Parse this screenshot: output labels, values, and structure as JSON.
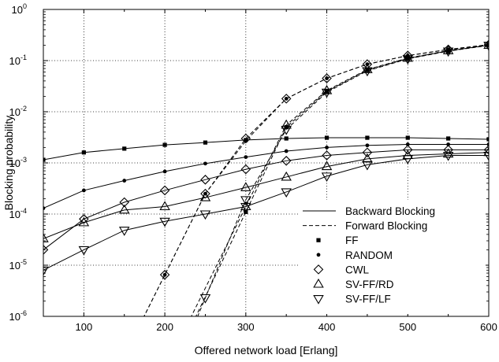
{
  "chart_data": {
    "type": "line",
    "xlabel": "Offered network load [Erlang]",
    "ylabel": "Blocking probability",
    "xlim": [
      50,
      600
    ],
    "ylim": [
      1e-06,
      1
    ],
    "yscale": "log",
    "xticks": [
      100,
      200,
      300,
      400,
      500,
      600
    ],
    "yticks": [
      {
        "base": "10",
        "exp": "0",
        "value": 1
      },
      {
        "base": "10",
        "exp": "-1",
        "value": 0.1
      },
      {
        "base": "10",
        "exp": "-2",
        "value": 0.01
      },
      {
        "base": "10",
        "exp": "-3",
        "value": 0.001
      },
      {
        "base": "10",
        "exp": "-4",
        "value": 0.0001
      },
      {
        "base": "10",
        "exp": "-5",
        "value": 1e-05
      },
      {
        "base": "10",
        "exp": "-6",
        "value": 1e-06
      }
    ],
    "grid": true,
    "legend_position": "bottom-right",
    "legend": {
      "lines": [
        {
          "label": "Backward Blocking",
          "style": "solid"
        },
        {
          "label": "Forward Blocking",
          "style": "dashed"
        }
      ],
      "markers": [
        {
          "label": "FF",
          "marker": "square"
        },
        {
          "label": "RANDOM",
          "marker": "circle"
        },
        {
          "label": "CWL",
          "marker": "diamond"
        },
        {
          "label": "SV-FF/RD",
          "marker": "triangle-up"
        },
        {
          "label": "SV-FF/LF",
          "marker": "triangle-down"
        }
      ]
    },
    "series": [
      {
        "name": "FF",
        "kind": "Backward Blocking",
        "marker": "square",
        "x": [
          50,
          100,
          150,
          200,
          250,
          300,
          350,
          400,
          450,
          500,
          550,
          600
        ],
        "y": [
          0.00115,
          0.0016,
          0.0019,
          0.00225,
          0.0025,
          0.0028,
          0.003,
          0.0031,
          0.0031,
          0.0031,
          0.003,
          0.0029
        ]
      },
      {
        "name": "RANDOM",
        "kind": "Backward Blocking",
        "marker": "circle",
        "x": [
          50,
          100,
          150,
          200,
          250,
          300,
          350,
          400,
          450,
          500,
          550,
          600
        ],
        "y": [
          0.00013,
          0.00029,
          0.00045,
          0.00068,
          0.00097,
          0.0013,
          0.0017,
          0.002,
          0.0022,
          0.0023,
          0.0023,
          0.0023
        ]
      },
      {
        "name": "CWL",
        "kind": "Backward Blocking",
        "marker": "diamond",
        "x": [
          50,
          100,
          150,
          200,
          250,
          300,
          350,
          400,
          450,
          500,
          550,
          600
        ],
        "y": [
          2e-05,
          8e-05,
          0.00017,
          0.00029,
          0.00047,
          0.00075,
          0.0011,
          0.0014,
          0.0016,
          0.0018,
          0.0018,
          0.0018
        ]
      },
      {
        "name": "SV-FF/RD",
        "kind": "Backward Blocking",
        "marker": "triangle-up",
        "x": [
          50,
          100,
          150,
          200,
          250,
          300,
          350,
          400,
          450,
          500,
          550,
          600
        ],
        "y": [
          3.3e-05,
          6.8e-05,
          0.00012,
          0.00014,
          0.00021,
          0.00033,
          0.00053,
          0.00085,
          0.0012,
          0.0014,
          0.0015,
          0.0016
        ]
      },
      {
        "name": "SV-FF/LF",
        "kind": "Backward Blocking",
        "marker": "triangle-down",
        "x": [
          50,
          100,
          150,
          200,
          250,
          300,
          350,
          400,
          450,
          500,
          550,
          600
        ],
        "y": [
          8e-06,
          2e-05,
          4.8e-05,
          7.2e-05,
          0.0001,
          0.00014,
          0.00027,
          0.00055,
          0.00092,
          0.0012,
          0.0014,
          0.0014
        ]
      },
      {
        "name": "FF",
        "kind": "Forward Blocking",
        "marker": "square",
        "x": [
          300,
          350,
          400,
          450,
          500,
          550,
          600
        ],
        "y": [
          0.00011,
          0.005,
          0.025,
          0.065,
          0.11,
          0.155,
          0.2
        ]
      },
      {
        "name": "RANDOM",
        "kind": "Forward Blocking",
        "marker": "circle",
        "x": [
          200,
          250,
          300,
          350,
          400,
          450,
          500,
          550,
          600
        ],
        "y": [
          6.5e-06,
          0.00025,
          0.0027,
          0.018,
          0.045,
          0.085,
          0.125,
          0.165,
          0.205
        ]
      },
      {
        "name": "CWL",
        "kind": "Forward Blocking",
        "marker": "diamond",
        "x": [
          200,
          250,
          300,
          350,
          400,
          450,
          500,
          550,
          600
        ],
        "y": [
          6.5e-06,
          0.00025,
          0.003,
          0.018,
          0.045,
          0.085,
          0.125,
          0.165,
          0.205
        ]
      },
      {
        "name": "SV-FF/RD",
        "kind": "Forward Blocking",
        "marker": "triangle-up",
        "x": [
          300,
          350,
          400,
          450,
          500,
          550,
          600
        ],
        "y": [
          0.00014,
          0.0055,
          0.026,
          0.067,
          0.112,
          0.157,
          0.2
        ]
      },
      {
        "name": "SV-FF/LF",
        "kind": "Forward Blocking",
        "marker": "triangle-down",
        "x": [
          250,
          300,
          350,
          400,
          450,
          500,
          550,
          600
        ],
        "y": [
          2.3e-06,
          0.00019,
          0.0045,
          0.024,
          0.063,
          0.108,
          0.153,
          0.198
        ]
      }
    ]
  }
}
